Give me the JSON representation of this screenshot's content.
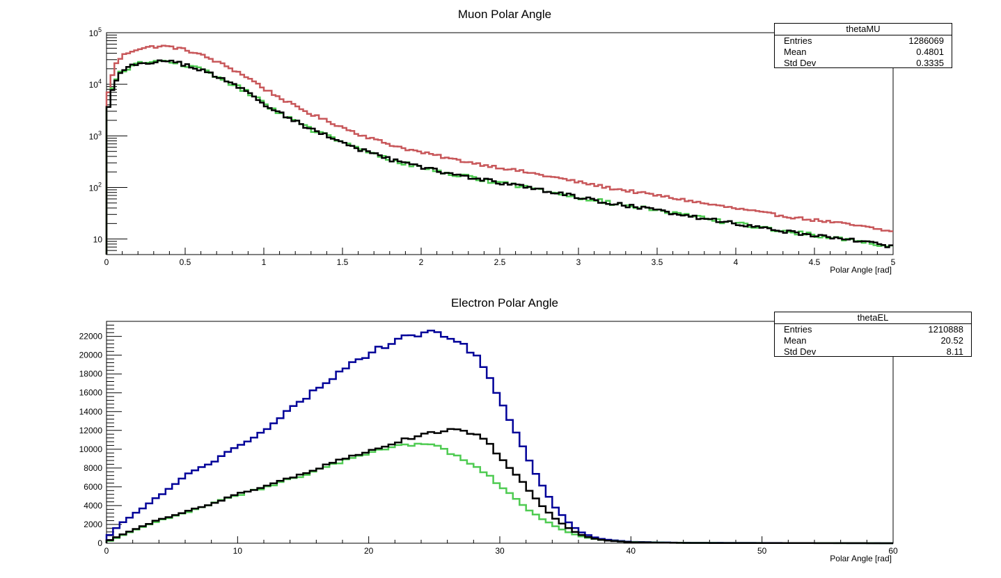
{
  "colors": {
    "red": "#c8575a",
    "green": "#4fcb52",
    "black": "#000000",
    "blue": "#000099"
  },
  "chart_data": [
    {
      "type": "histogram",
      "title": "Muon Polar Angle",
      "xlabel": "Polar Angle [rad]",
      "ylabel": "",
      "log_y": true,
      "xlim": [
        0,
        5
      ],
      "ylim": [
        5,
        100000
      ],
      "grid": false,
      "x_ticks": [
        {
          "value": 0,
          "label": "0"
        },
        {
          "value": 0.5,
          "label": "0.5"
        },
        {
          "value": 1,
          "label": "1"
        },
        {
          "value": 1.5,
          "label": "1.5"
        },
        {
          "value": 2,
          "label": "2"
        },
        {
          "value": 2.5,
          "label": "2.5"
        },
        {
          "value": 3,
          "label": "3"
        },
        {
          "value": 3.5,
          "label": "3.5"
        },
        {
          "value": 4,
          "label": "4"
        },
        {
          "value": 4.5,
          "label": "4.5"
        },
        {
          "value": 5,
          "label": "5"
        }
      ],
      "y_ticks": [
        {
          "value": 10,
          "label": "10"
        },
        {
          "value": 100,
          "label": "10",
          "exp": "2"
        },
        {
          "value": 1000,
          "label": "10",
          "exp": "3"
        },
        {
          "value": 10000,
          "label": "10",
          "exp": "4"
        },
        {
          "value": 100000,
          "label": "10",
          "exp": "5"
        }
      ],
      "bins": {
        "low": 0,
        "high": 5,
        "count": 200
      },
      "curve_points": [
        [
          0.0,
          2000
        ],
        [
          0.025,
          5000
        ],
        [
          0.05,
          11000
        ],
        [
          0.1,
          18000
        ],
        [
          0.15,
          22000
        ],
        [
          0.2,
          25000
        ],
        [
          0.3,
          27500
        ],
        [
          0.35,
          28000
        ],
        [
          0.4,
          27500
        ],
        [
          0.5,
          24000
        ],
        [
          0.6,
          19000
        ],
        [
          0.7,
          14000
        ],
        [
          0.8,
          10000
        ],
        [
          0.9,
          6800
        ],
        [
          1.0,
          4200
        ],
        [
          1.1,
          2800
        ],
        [
          1.2,
          1900
        ],
        [
          1.3,
          1350
        ],
        [
          1.4,
          1000
        ],
        [
          1.5,
          750
        ],
        [
          1.6,
          560
        ],
        [
          1.7,
          440
        ],
        [
          1.8,
          350
        ],
        [
          1.9,
          290
        ],
        [
          2.0,
          245
        ],
        [
          2.2,
          180
        ],
        [
          2.4,
          140
        ],
        [
          2.6,
          110
        ],
        [
          2.8,
          85
        ],
        [
          3.0,
          65
        ],
        [
          3.2,
          50
        ],
        [
          3.4,
          40
        ],
        [
          3.6,
          32
        ],
        [
          3.8,
          25
        ],
        [
          4.0,
          20
        ],
        [
          4.2,
          16
        ],
        [
          4.4,
          13
        ],
        [
          4.6,
          11
        ],
        [
          4.8,
          9
        ],
        [
          5.0,
          7
        ]
      ],
      "series": [
        {
          "color": "red",
          "scale": 1.95,
          "noise": 0.06
        },
        {
          "color": "green",
          "scale": 1.0,
          "noise": 0.09
        },
        {
          "color": "black",
          "scale": 1.0,
          "noise": 0.08
        }
      ],
      "stats_box": {
        "title": "thetaMU",
        "rows": [
          {
            "label": "Entries",
            "value": "1286069"
          },
          {
            "label": "Mean",
            "value": "0.4801"
          },
          {
            "label": "Std Dev",
            "value": "0.3335"
          }
        ]
      }
    },
    {
      "type": "histogram",
      "title": "Electron Polar Angle",
      "xlabel": "Polar Angle [rad]",
      "ylabel": "",
      "log_y": false,
      "xlim": [
        0,
        60
      ],
      "ylim": [
        0,
        23600
      ],
      "grid": false,
      "x_ticks": [
        {
          "value": 0,
          "label": "0"
        },
        {
          "value": 10,
          "label": "10"
        },
        {
          "value": 20,
          "label": "20"
        },
        {
          "value": 30,
          "label": "30"
        },
        {
          "value": 40,
          "label": "40"
        },
        {
          "value": 50,
          "label": "50"
        },
        {
          "value": 60,
          "label": "60"
        }
      ],
      "y_ticks": [
        {
          "value": 0,
          "label": "0"
        },
        {
          "value": 2000,
          "label": "2000"
        },
        {
          "value": 4000,
          "label": "4000"
        },
        {
          "value": 6000,
          "label": "6000"
        },
        {
          "value": 8000,
          "label": "8000"
        },
        {
          "value": 10000,
          "label": "10000"
        },
        {
          "value": 12000,
          "label": "12000"
        },
        {
          "value": 14000,
          "label": "14000"
        },
        {
          "value": 16000,
          "label": "16000"
        },
        {
          "value": 18000,
          "label": "18000"
        },
        {
          "value": 20000,
          "label": "20000"
        },
        {
          "value": 22000,
          "label": "22000"
        }
      ],
      "bins": {
        "low": 0,
        "high": 60,
        "count": 120
      },
      "series": [
        {
          "color": "blue",
          "noise": 0.015,
          "points": [
            [
              0,
              500
            ],
            [
              1,
              2000
            ],
            [
              2,
              3000
            ],
            [
              4,
              5000
            ],
            [
              6,
              7200
            ],
            [
              8,
              8600
            ],
            [
              10,
              10300
            ],
            [
              12,
              11800
            ],
            [
              14,
              14200
            ],
            [
              16,
              16300
            ],
            [
              18,
              18500
            ],
            [
              20,
              20200
            ],
            [
              22,
              21500
            ],
            [
              24,
              22300
            ],
            [
              25,
              22400
            ],
            [
              26,
              22100
            ],
            [
              27,
              21500
            ],
            [
              28,
              20200
            ],
            [
              29,
              18200
            ],
            [
              30,
              15500
            ],
            [
              31,
              12500
            ],
            [
              32,
              9500
            ],
            [
              33,
              6700
            ],
            [
              34,
              4300
            ],
            [
              35,
              2500
            ],
            [
              36,
              1300
            ],
            [
              37,
              700
            ],
            [
              38,
              400
            ],
            [
              40,
              150
            ],
            [
              44,
              50
            ],
            [
              60,
              0
            ]
          ]
        },
        {
          "color": "green",
          "noise": 0.02,
          "points": [
            [
              0,
              100
            ],
            [
              1,
              700
            ],
            [
              2,
              1300
            ],
            [
              4,
              2400
            ],
            [
              6,
              3200
            ],
            [
              8,
              4200
            ],
            [
              10,
              5100
            ],
            [
              12,
              5900
            ],
            [
              14,
              6800
            ],
            [
              16,
              7700
            ],
            [
              18,
              8700
            ],
            [
              20,
              9500
            ],
            [
              22,
              10200
            ],
            [
              24,
              10500
            ],
            [
              25,
              10300
            ],
            [
              26,
              9800
            ],
            [
              27,
              9200
            ],
            [
              28,
              8400
            ],
            [
              29,
              7400
            ],
            [
              30,
              6200
            ],
            [
              31,
              5000
            ],
            [
              32,
              3800
            ],
            [
              33,
              2800
            ],
            [
              34,
              2000
            ],
            [
              35,
              1300
            ],
            [
              36,
              800
            ],
            [
              37,
              500
            ],
            [
              38,
              300
            ],
            [
              40,
              120
            ],
            [
              44,
              40
            ],
            [
              60,
              0
            ]
          ]
        },
        {
          "color": "black",
          "noise": 0.015,
          "points": [
            [
              0,
              150
            ],
            [
              1,
              800
            ],
            [
              2,
              1400
            ],
            [
              4,
              2500
            ],
            [
              6,
              3300
            ],
            [
              8,
              4200
            ],
            [
              10,
              5200
            ],
            [
              12,
              6000
            ],
            [
              14,
              6900
            ],
            [
              16,
              7900
            ],
            [
              18,
              8900
            ],
            [
              20,
              9900
            ],
            [
              22,
              10700
            ],
            [
              24,
              11500
            ],
            [
              26,
              12000
            ],
            [
              27,
              12050
            ],
            [
              28,
              11700
            ],
            [
              29,
              10800
            ],
            [
              30,
              9300
            ],
            [
              31,
              7700
            ],
            [
              32,
              6000
            ],
            [
              33,
              4300
            ],
            [
              34,
              2900
            ],
            [
              35,
              1800
            ],
            [
              36,
              1000
            ],
            [
              37,
              550
            ],
            [
              38,
              300
            ],
            [
              40,
              100
            ],
            [
              44,
              30
            ],
            [
              60,
              0
            ]
          ]
        }
      ],
      "stats_box": {
        "title": "thetaEL",
        "rows": [
          {
            "label": "Entries",
            "value": "1210888"
          },
          {
            "label": "Mean",
            "value": "20.52"
          },
          {
            "label": "Std Dev",
            "value": "8.11"
          }
        ]
      }
    }
  ]
}
